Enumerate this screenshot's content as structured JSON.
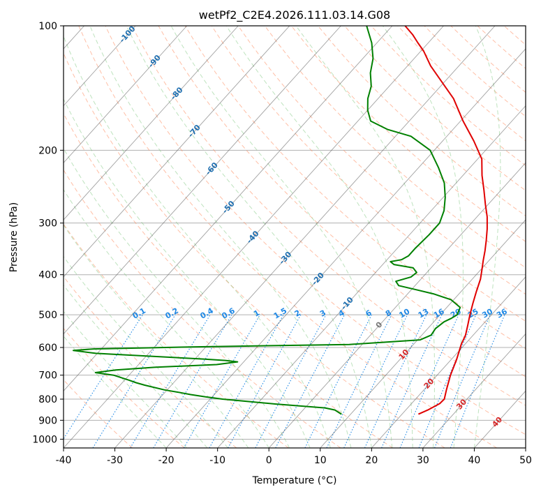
{
  "chart_data": {
    "type": "line",
    "subtype": "skew-t log-p diagram",
    "title": "wetPf2_C2E4.2026.111.03.14.G08",
    "xlabel": "Temperature (°C)",
    "ylabel": "Pressure (hPa)",
    "xlim": [
      -40,
      50
    ],
    "ylim": [
      1050,
      100
    ],
    "y_scale": "log",
    "x_ticks": [
      -40,
      -30,
      -20,
      -10,
      0,
      10,
      20,
      30,
      40,
      50
    ],
    "y_ticks": [
      100,
      200,
      300,
      400,
      500,
      600,
      700,
      800,
      900,
      1000
    ],
    "grid": true,
    "background_lines": {
      "dry_adiabats": {
        "color": "#ff8a5c",
        "style": "dashed"
      },
      "moist_adiabats": {
        "color": "#7ec87e",
        "style": "dashed"
      },
      "mixing_ratio_lines": {
        "color": "#1e88e5",
        "style": "dotted",
        "labels": [
          "0.1",
          "0.2",
          "0.4",
          "0.6",
          "1",
          "1.5",
          "2",
          "3",
          "4",
          "6",
          "8",
          "10",
          "13",
          "16",
          "20",
          "25",
          "30",
          "36"
        ]
      },
      "skewed_isotherms": {
        "color": "#555555",
        "style": "solid"
      },
      "isotherm_labels_blue": [
        "-100",
        "-90",
        "-80",
        "-70",
        "-60",
        "-50",
        "-40",
        "-30",
        "-20",
        "-10"
      ],
      "isotherm_label_zero": "0",
      "isotherm_labels_red": [
        "10",
        "20",
        "30",
        "40"
      ]
    },
    "series": [
      {
        "color": "#e00000",
        "points": [
          [
            23.2,
            870
          ],
          [
            24.3,
            850
          ],
          [
            25.5,
            820
          ],
          [
            25.6,
            800
          ],
          [
            24.4,
            760
          ],
          [
            22.6,
            700
          ],
          [
            21.0,
            640
          ],
          [
            19.3,
            590
          ],
          [
            18.5,
            560
          ],
          [
            17.2,
            530
          ],
          [
            15.8,
            500
          ],
          [
            14.4,
            470
          ],
          [
            13.0,
            440
          ],
          [
            11.6,
            410
          ],
          [
            10.3,
            390
          ],
          [
            8.9,
            370
          ],
          [
            7.5,
            350
          ],
          [
            5.9,
            330
          ],
          [
            4.1,
            310
          ],
          [
            2.0,
            290
          ],
          [
            -0.6,
            270
          ],
          [
            -3.3,
            250
          ],
          [
            -6.3,
            230
          ],
          [
            -9.2,
            210
          ],
          [
            -13.9,
            190
          ],
          [
            -19.5,
            170
          ],
          [
            -25.3,
            150
          ],
          [
            -31.2,
            135
          ],
          [
            -35.5,
            125
          ],
          [
            -39.5,
            115
          ],
          [
            -42.0,
            110
          ],
          [
            -44.5,
            105
          ],
          [
            -47.5,
            100
          ]
        ]
      },
      {
        "color": "#008000",
        "points": [
          [
            8.2,
            870
          ],
          [
            6.2,
            850
          ],
          [
            3.9,
            840
          ],
          [
            -6.5,
            822
          ],
          [
            -17.6,
            800
          ],
          [
            -21.3,
            790
          ],
          [
            -24.6,
            780
          ],
          [
            -27.4,
            770
          ],
          [
            -30.5,
            760
          ],
          [
            -35.2,
            740
          ],
          [
            -37.3,
            730
          ],
          [
            -39.1,
            720
          ],
          [
            -43.0,
            700
          ],
          [
            -47.0,
            690
          ],
          [
            -43.5,
            680
          ],
          [
            -36.4,
            670
          ],
          [
            -24.8,
            660
          ],
          [
            -21.2,
            650
          ],
          [
            -23.8,
            645
          ],
          [
            -28.3,
            640
          ],
          [
            -50.3,
            620
          ],
          [
            -55.2,
            610
          ],
          [
            -51.5,
            605
          ],
          [
            -32.9,
            598
          ],
          [
            -2.5,
            590
          ],
          [
            10.5,
            575
          ],
          [
            11.8,
            560
          ],
          [
            11.5,
            540
          ],
          [
            12.0,
            520
          ],
          [
            12.8,
            510
          ],
          [
            13.3,
            500
          ],
          [
            12.6,
            480
          ],
          [
            9.5,
            460
          ],
          [
            5.0,
            445
          ],
          [
            1.0,
            435
          ],
          [
            -3.2,
            425
          ],
          [
            -4.5,
            415
          ],
          [
            -2.3,
            405
          ],
          [
            -2.0,
            395
          ],
          [
            -3.5,
            385
          ],
          [
            -7.8,
            378
          ],
          [
            -9.0,
            372
          ],
          [
            -7.2,
            368
          ],
          [
            -6.5,
            360
          ],
          [
            -6.5,
            345
          ],
          [
            -6.2,
            320
          ],
          [
            -6.2,
            300
          ],
          [
            -7.5,
            280
          ],
          [
            -9.6,
            260
          ],
          [
            -12.3,
            240
          ],
          [
            -16.2,
            220
          ],
          [
            -20.8,
            200
          ],
          [
            -27.0,
            185
          ],
          [
            -32.8,
            178
          ],
          [
            -37.5,
            170
          ],
          [
            -40.0,
            160
          ],
          [
            -42.0,
            150
          ],
          [
            -43.5,
            140
          ],
          [
            -46.0,
            130
          ],
          [
            -48.0,
            120
          ],
          [
            -51.0,
            110
          ],
          [
            -55.0,
            100
          ]
        ]
      }
    ]
  }
}
